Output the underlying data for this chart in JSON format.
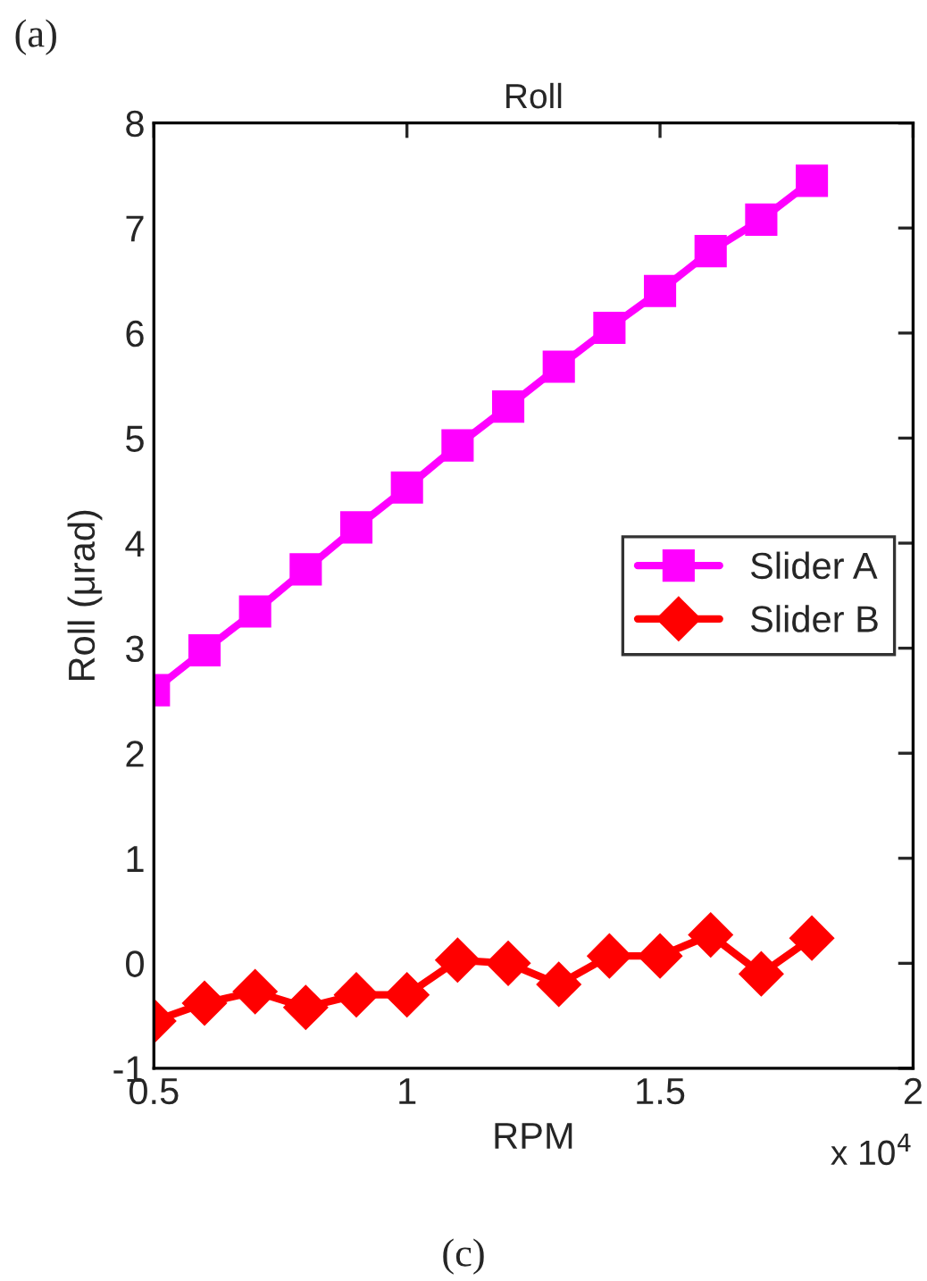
{
  "chart_data": {
    "type": "line",
    "title": "Roll",
    "xlabel": "RPM",
    "ylabel": "Roll (μrad)",
    "x": [
      0.5,
      0.6,
      0.7,
      0.8,
      0.9,
      1.0,
      1.1,
      1.2,
      1.3,
      1.4,
      1.5,
      1.6,
      1.7,
      1.8
    ],
    "series": [
      {
        "name": "Slider A",
        "color": "#ff00ff",
        "marker": "square",
        "values": [
          2.6,
          2.98,
          3.35,
          3.75,
          4.15,
          4.53,
          4.93,
          5.3,
          5.68,
          6.05,
          6.4,
          6.78,
          7.08,
          7.45
        ]
      },
      {
        "name": "Slider B",
        "color": "#ff0000",
        "marker": "diamond",
        "values": [
          -0.55,
          -0.38,
          -0.27,
          -0.42,
          -0.3,
          -0.3,
          0.03,
          0.0,
          -0.2,
          0.07,
          0.07,
          0.27,
          -0.1,
          0.24
        ]
      }
    ],
    "xlim": [
      0.5,
      2
    ],
    "xticks": [
      0.5,
      1,
      1.5,
      2
    ],
    "ylim": [
      -1,
      8
    ],
    "yticks": [
      -1,
      0,
      1,
      2,
      3,
      4,
      5,
      6,
      7,
      8
    ],
    "grid": false,
    "legend": "right",
    "line_style": "solid",
    "annotations": [
      "(a)",
      "(c)",
      "x 10$^{4}$"
    ]
  }
}
